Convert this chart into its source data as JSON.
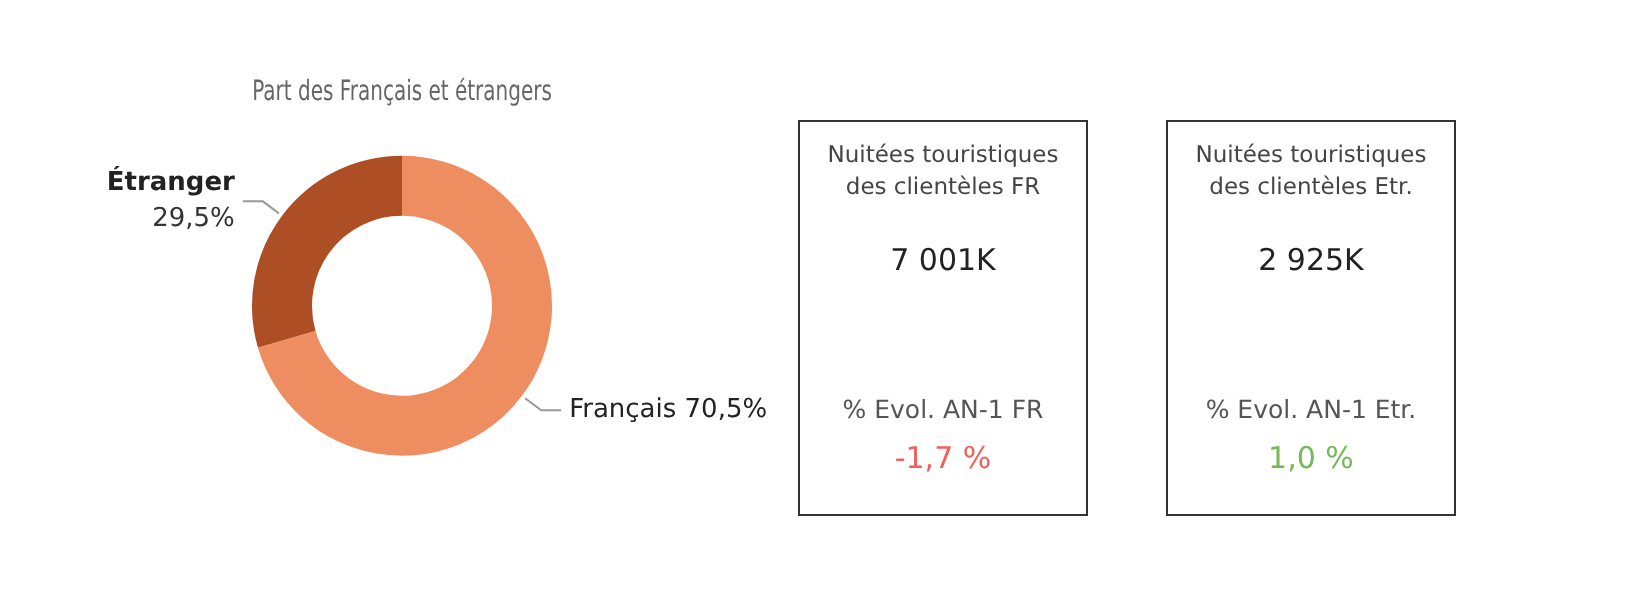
{
  "chart_data": [
    {
      "type": "donut",
      "title": "Part des Français et étrangers",
      "categories": [
        "Étranger",
        "Français"
      ],
      "values": [
        29.5,
        70.5
      ],
      "colors": [
        "#ad4e24",
        "#ee8d60"
      ],
      "value_labels": [
        "29,5%",
        "70,5%"
      ],
      "legend": false
    },
    {
      "type": "other",
      "title": "Nuitées touristiques des clientèles FR",
      "annotations": [
        "7 001K",
        "% Evol. AN-1 FR",
        "-1,7 %"
      ],
      "colors": [
        "#222222",
        "#555555",
        "#f2605a"
      ]
    },
    {
      "type": "other",
      "title": "Nuitées touristiques des clientèles Etr.",
      "annotations": [
        "2 925K",
        "% Evol. AN-1 Etr.",
        "1,0 %"
      ],
      "colors": [
        "#222222",
        "#555555",
        "#74b857"
      ]
    }
  ]
}
